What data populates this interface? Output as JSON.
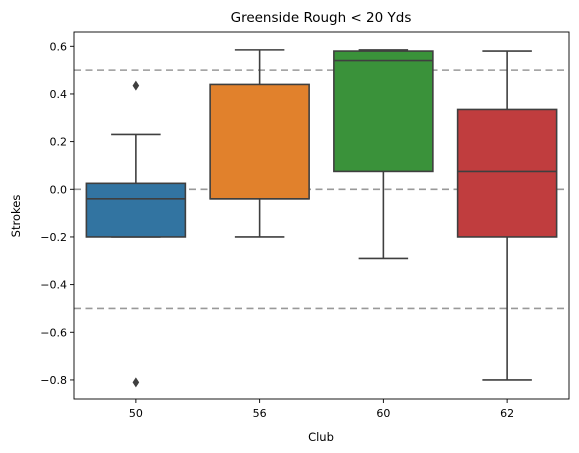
{
  "chart_data": {
    "type": "box",
    "title": "Greenside Rough < 20 Yds",
    "xlabel": "Club",
    "ylabel": "Strokes",
    "categories": [
      "50",
      "56",
      "60",
      "62"
    ],
    "ylim": [
      -0.88,
      0.66
    ],
    "yticks": [
      0.6,
      0.4,
      0.2,
      0.0,
      -0.2,
      -0.4,
      -0.6,
      -0.8
    ],
    "ytick_labels": [
      "0.6",
      "0.4",
      "0.2",
      "0.0",
      "−0.2",
      "−0.4",
      "−0.6",
      "−0.8"
    ],
    "reference_lines": [
      0.5,
      0.0,
      -0.5
    ],
    "grid": false,
    "boxes": [
      {
        "category": "50",
        "whisker_low": -0.2,
        "q1": -0.2,
        "median": -0.04,
        "q3": 0.025,
        "whisker_high": 0.23,
        "outliers": [
          0.435,
          -0.81
        ],
        "color": "#3274a1"
      },
      {
        "category": "56",
        "whisker_low": -0.2,
        "q1": -0.04,
        "median": -0.04,
        "q3": 0.44,
        "whisker_high": 0.585,
        "outliers": [],
        "color": "#e1812c"
      },
      {
        "category": "60",
        "whisker_low": -0.29,
        "q1": 0.075,
        "median": 0.54,
        "q3": 0.58,
        "whisker_high": 0.585,
        "outliers": [],
        "color": "#3a923a"
      },
      {
        "category": "62",
        "whisker_low": -0.8,
        "q1": -0.2,
        "median": 0.075,
        "q3": 0.335,
        "whisker_high": 0.58,
        "outliers": [],
        "color": "#c03d3e"
      }
    ]
  }
}
